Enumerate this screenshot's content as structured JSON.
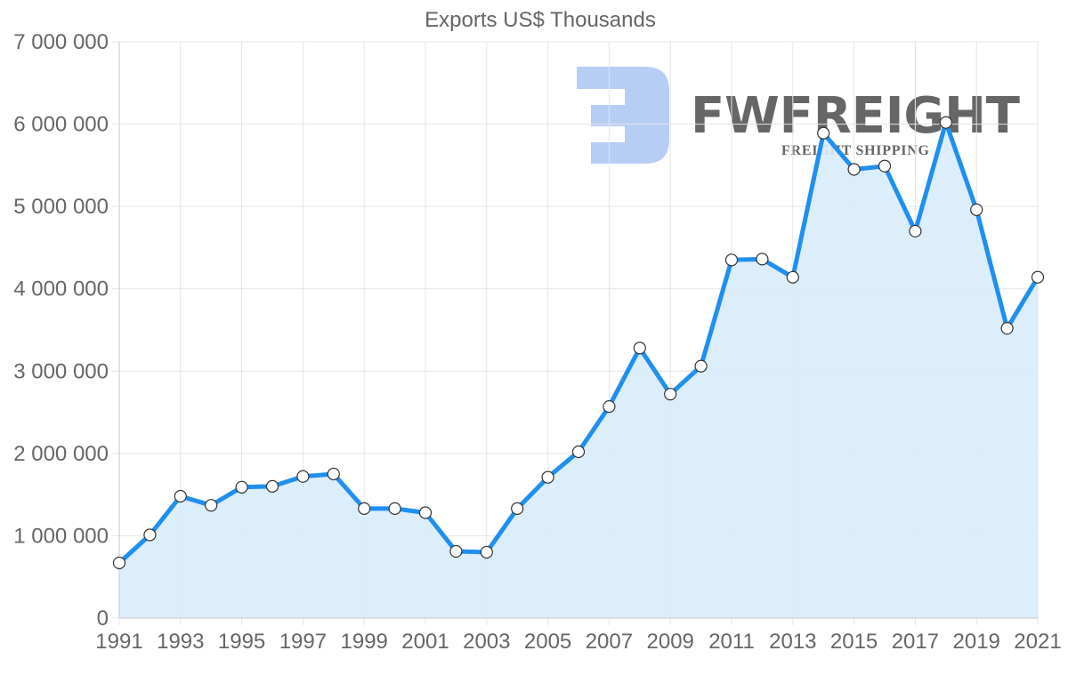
{
  "colors": {
    "line": "#1f8ff0",
    "fill": "#d8ebfc",
    "marker_fill": "#ffffff",
    "marker_stroke": "#333333",
    "watermark": "#b3cbf3",
    "text": "#666666"
  },
  "watermark": {
    "brand": "FWFREIGHT",
    "tagline": "FREIGHT SHIPPING"
  },
  "chart_data": {
    "type": "area",
    "title": "Exports US$ Thousands",
    "xlabel": "",
    "ylabel": "",
    "x": [
      1991,
      1992,
      1993,
      1994,
      1995,
      1996,
      1997,
      1998,
      1999,
      2000,
      2001,
      2002,
      2003,
      2004,
      2005,
      2006,
      2007,
      2008,
      2009,
      2010,
      2011,
      2012,
      2013,
      2014,
      2015,
      2016,
      2017,
      2018,
      2019,
      2020,
      2021
    ],
    "series": [
      {
        "name": "Exports US$ Thousands",
        "values": [
          670000,
          1010000,
          1480000,
          1370000,
          1590000,
          1600000,
          1720000,
          1750000,
          1330000,
          1330000,
          1280000,
          810000,
          800000,
          1330000,
          1710000,
          2020000,
          2570000,
          3280000,
          2720000,
          3060000,
          4350000,
          4360000,
          4140000,
          5890000,
          5450000,
          5490000,
          4700000,
          6020000,
          4960000,
          3520000,
          4140000
        ]
      }
    ],
    "ylim": [
      0,
      7000000
    ],
    "yticks": [
      0,
      1000000,
      2000000,
      3000000,
      4000000,
      5000000,
      6000000,
      7000000
    ],
    "ytick_labels": [
      "0",
      "1 000 000",
      "2 000 000",
      "3 000 000",
      "4 000 000",
      "5 000 000",
      "6 000 000",
      "7 000 000"
    ],
    "xtick_labels": [
      "1991",
      "1993",
      "1995",
      "1997",
      "1999",
      "2001",
      "2003",
      "2005",
      "2007",
      "2009",
      "2011",
      "2013",
      "2015",
      "2017",
      "2019",
      "2021"
    ],
    "grid": true,
    "legend": null,
    "markers": true
  }
}
